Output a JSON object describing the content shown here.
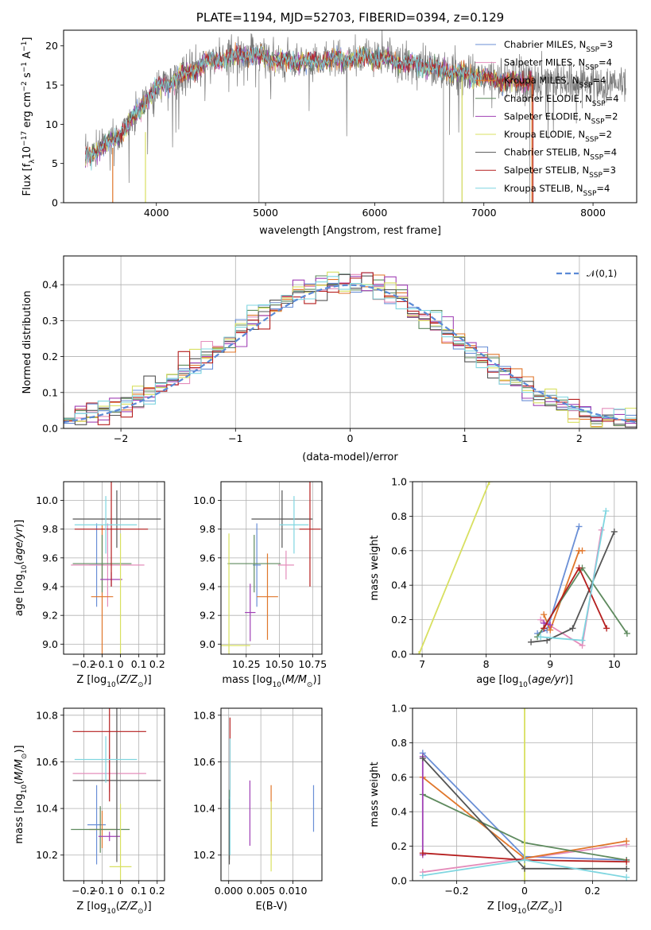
{
  "chart_data": [
    {
      "id": "spectrum",
      "type": "line",
      "title": "PLATE=1194, MJD=52703, FIBERID=0394, z=0.129",
      "xlabel": "wavelength [Angstrom, rest frame]",
      "ylabel": "Flux [f_λ10^-17 erg cm^-2 s^-1 A^-1]",
      "xlim": [
        3150,
        8400
      ],
      "ylim": [
        0,
        22
      ],
      "xticks": [
        4000,
        5000,
        6000,
        7000,
        8000
      ],
      "yticks": [
        0,
        5,
        10,
        15,
        20
      ],
      "legend_position": "upper-right",
      "series_names": [
        "Chabrier MILES, N_SSP=3",
        "Salpeter MILES, N_SSP=4",
        "Kroupa MILES, N_SSP=4",
        "Chabrier ELODIE, N_SSP=4",
        "Salpeter ELODIE, N_SSP=2",
        "Kroupa ELODIE, N_SSP=2",
        "Chabrier STELIB, N_SSP=4",
        "Salpeter STELIB, N_SSP=3",
        "Kroupa STELIB, N_SSP=4"
      ],
      "series_colors": [
        "#6a8fd6",
        "#e48dbb",
        "#e0762a",
        "#5e8a5e",
        "#a040b5",
        "#d8e060",
        "#555555",
        "#b51e1e",
        "#7fd6e0"
      ],
      "continuum": {
        "x": [
          3350,
          3500,
          3650,
          3800,
          3950,
          4050,
          4200,
          4350,
          4500,
          4650,
          4800,
          5000,
          5200,
          5400,
          5600,
          5800,
          6000,
          6200,
          6400,
          6600,
          6800,
          7000,
          7200,
          7400
        ],
        "y": [
          6,
          7,
          8.5,
          11,
          14,
          15,
          16,
          17,
          18,
          18.5,
          19,
          18.5,
          18,
          18,
          18.2,
          18.5,
          18.5,
          18,
          17.5,
          17,
          16.5,
          16,
          15.5,
          15.5
        ]
      },
      "observed_x_range": [
        3350,
        8300
      ]
    },
    {
      "id": "residuals",
      "type": "histogram",
      "xlabel": "(data-model)/error",
      "ylabel": "Normed distribution",
      "xlim": [
        -2.5,
        2.5
      ],
      "ylim": [
        0,
        0.48
      ],
      "xticks": [
        -2,
        -1,
        0,
        1,
        2
      ],
      "yticks": [
        0.0,
        0.1,
        0.2,
        0.3,
        0.4
      ],
      "bin_width": 0.1,
      "legend_position": "upper-right",
      "legend_label": "𝒩(0,1)",
      "reference_curve": {
        "mean": 0,
        "sigma": 1,
        "color": "#5a8ad6"
      }
    },
    {
      "id": "age-vs-z",
      "type": "errorbar",
      "xlabel": "Z [log10(Z/Z_sun)]",
      "ylabel": "age [log10(age/yr)]",
      "xlim": [
        -0.31,
        0.24
      ],
      "ylim": [
        8.93,
        10.13
      ],
      "xticks": [
        -0.2,
        -0.1,
        0.0,
        0.1,
        0.2
      ],
      "yticks": [
        9.0,
        9.2,
        9.4,
        9.6,
        9.8,
        10.0
      ],
      "points": [
        {
          "x": -0.13,
          "xerr": 0.04,
          "y": 9.55,
          "yerr": 0.29
        },
        {
          "x": -0.07,
          "xerr": 0.2,
          "y": 9.55,
          "yerr": 0.29
        },
        {
          "x": -0.1,
          "xerr": 0.06,
          "y": 9.33,
          "yerr": 0.5
        },
        {
          "x": -0.1,
          "xerr": 0.16,
          "y": 9.56,
          "yerr": 0.2
        },
        {
          "x": -0.05,
          "xerr": 0.06,
          "y": 9.45,
          "yerr": 0.05
        },
        {
          "x": 0.0,
          "xerr": 0.0,
          "y": 8.99,
          "yerr": 0.78
        },
        {
          "x": -0.02,
          "xerr": 0.24,
          "y": 9.87,
          "yerr": 0.2
        },
        {
          "x": -0.05,
          "xerr": 0.2,
          "y": 9.8,
          "yerr": 0.4
        },
        {
          "x": -0.08,
          "xerr": 0.17,
          "y": 9.83,
          "yerr": 0.2
        }
      ]
    },
    {
      "id": "age-vs-mass",
      "type": "errorbar",
      "xlabel": "mass [log10(M/M_sun)]",
      "ylabel": "",
      "xlim": [
        10.06,
        10.82
      ],
      "ylim": [
        8.93,
        10.13
      ],
      "xticks": [
        10.25,
        10.5,
        10.75
      ],
      "yticks": [
        9.0,
        9.2,
        9.4,
        9.6,
        9.8,
        10.0
      ],
      "points": [
        {
          "x": 10.33,
          "xerr": 0.03,
          "y": 9.55,
          "yerr": 0.29
        },
        {
          "x": 10.55,
          "xerr": 0.06,
          "y": 9.55,
          "yerr": 0.1
        },
        {
          "x": 10.41,
          "xerr": 0.08,
          "y": 9.33,
          "yerr": 0.3
        },
        {
          "x": 10.31,
          "xerr": 0.2,
          "y": 9.56,
          "yerr": 0.2
        },
        {
          "x": 10.28,
          "xerr": 0.04,
          "y": 9.22,
          "yerr": 0.2
        },
        {
          "x": 10.12,
          "xerr": 0.16,
          "y": 8.99,
          "yerr": 0.78
        },
        {
          "x": 10.52,
          "xerr": 0.23,
          "y": 9.87,
          "yerr": 0.2
        },
        {
          "x": 10.73,
          "xerr": 0.08,
          "y": 9.8,
          "yerr": 0.4
        },
        {
          "x": 10.61,
          "xerr": 0.11,
          "y": 9.83,
          "yerr": 0.2
        }
      ]
    },
    {
      "id": "weight-vs-age",
      "type": "line",
      "xlabel": "age [log10(age/yr)]",
      "ylabel": "mass weight",
      "xlim": [
        6.85,
        10.35
      ],
      "ylim": [
        0,
        1.0
      ],
      "xticks": [
        7,
        8,
        9,
        10
      ],
      "yticks": [
        0.0,
        0.2,
        0.4,
        0.6,
        0.8,
        1.0
      ],
      "series": [
        {
          "x": [
            8.8,
            8.95,
            9.45
          ],
          "y": [
            0.12,
            0.14,
            0.74
          ]
        },
        {
          "x": [
            8.85,
            9.5,
            9.8
          ],
          "y": [
            0.2,
            0.05,
            0.72
          ]
        },
        {
          "x": [
            8.9,
            9.0,
            9.45,
            9.5
          ],
          "y": [
            0.23,
            0.14,
            0.6,
            0.6
          ]
        },
        {
          "x": [
            8.8,
            9.5,
            10.2
          ],
          "y": [
            0.1,
            0.5,
            0.12
          ]
        },
        {
          "x": [
            8.9,
            9.0
          ],
          "y": [
            0.18,
            0.17
          ]
        },
        {
          "x": [
            6.95,
            8.05
          ],
          "y": [
            0.0,
            1.0
          ]
        },
        {
          "x": [
            8.7,
            8.95,
            9.35,
            10.0
          ],
          "y": [
            0.07,
            0.08,
            0.15,
            0.71
          ]
        },
        {
          "x": [
            8.9,
            9.45,
            9.88
          ],
          "y": [
            0.15,
            0.5,
            0.15
          ]
        },
        {
          "x": [
            8.85,
            9.5,
            9.87
          ],
          "y": [
            0.1,
            0.08,
            0.83
          ]
        }
      ]
    },
    {
      "id": "mass-vs-z",
      "type": "errorbar",
      "xlabel": "Z [log10(Z/Z_sun)]",
      "ylabel": "mass [log10(M/M_sun)]",
      "xlim": [
        -0.31,
        0.24
      ],
      "ylim": [
        10.09,
        10.83
      ],
      "xticks": [
        -0.2,
        -0.1,
        0.0,
        0.1,
        0.2
      ],
      "yticks": [
        10.2,
        10.4,
        10.6,
        10.8
      ],
      "points": [
        {
          "x": -0.13,
          "xerr": 0.05,
          "y": 10.33,
          "yerr": 0.17
        },
        {
          "x": -0.06,
          "xerr": 0.2,
          "y": 10.55,
          "yerr": 0.08
        },
        {
          "x": -0.1,
          "xerr": 0.07,
          "y": 10.31,
          "yerr": 0.08
        },
        {
          "x": -0.11,
          "xerr": 0.16,
          "y": 10.31,
          "yerr": 0.1
        },
        {
          "x": -0.06,
          "xerr": 0.06,
          "y": 10.28,
          "yerr": 0.02
        },
        {
          "x": 0.0,
          "xerr": 0.06,
          "y": 10.15,
          "yerr": 0.27
        },
        {
          "x": -0.02,
          "xerr": 0.24,
          "y": 10.52,
          "yerr": 0.35
        },
        {
          "x": -0.06,
          "xerr": 0.2,
          "y": 10.73,
          "yerr": 0.3
        },
        {
          "x": -0.08,
          "xerr": 0.17,
          "y": 10.61,
          "yerr": 0.1
        }
      ]
    },
    {
      "id": "mass-vs-ebv",
      "type": "errorbar",
      "xlabel": "E(B-V)",
      "ylabel": "",
      "xlim": [
        -0.0012,
        0.0145
      ],
      "ylim": [
        10.09,
        10.83
      ],
      "xticks": [
        0.0,
        0.005,
        0.01
      ],
      "xtick_labels": [
        "0.000",
        "0.005",
        "0.010"
      ],
      "yticks": [
        10.2,
        10.4,
        10.6,
        10.8
      ],
      "points": [
        {
          "x": 0.0132,
          "y": 10.4,
          "yerr": 0.1
        },
        {
          "x": 0.0002,
          "y": 10.55,
          "yerr": 0.15
        },
        {
          "x": 0.0066,
          "y": 10.35,
          "yerr": 0.15
        },
        {
          "x": 0.0001,
          "y": 10.33,
          "yerr": 0.15
        },
        {
          "x": 0.0033,
          "y": 10.38,
          "yerr": 0.14
        },
        {
          "x": 0.0066,
          "y": 10.28,
          "yerr": 0.15
        },
        {
          "x": 0.0001,
          "y": 10.3,
          "yerr": 0.14
        },
        {
          "x": 0.0002,
          "y": 10.62,
          "yerr": 0.17
        },
        {
          "x": 0.0002,
          "y": 10.45,
          "yerr": 0.25
        }
      ]
    },
    {
      "id": "weight-vs-z",
      "type": "line",
      "xlabel": "Z [log10(Z/Z_sun)]",
      "ylabel": "mass weight",
      "xlim": [
        -0.33,
        0.33
      ],
      "ylim": [
        0,
        1.0
      ],
      "xticks": [
        -0.2,
        0.0,
        0.2
      ],
      "yticks": [
        0.0,
        0.2,
        0.4,
        0.6,
        0.8,
        1.0
      ],
      "series": [
        {
          "x": [
            -0.3,
            0.0,
            0.3
          ],
          "y": [
            0.74,
            0.14,
            0.12
          ]
        },
        {
          "x": [
            -0.3,
            0.0,
            0.3
          ],
          "y": [
            0.05,
            0.13,
            0.21
          ]
        },
        {
          "x": [
            -0.3,
            0.0,
            0.3
          ],
          "y": [
            0.6,
            0.13,
            0.23
          ]
        },
        {
          "x": [
            -0.3,
            0.0,
            0.3
          ],
          "y": [
            0.5,
            0.22,
            0.12
          ]
        },
        {
          "x": [
            -0.3,
            -0.3
          ],
          "y": [
            0.72,
            0.15
          ]
        },
        {
          "x": [
            0.0,
            0.0
          ],
          "y": [
            0.0,
            1.0
          ]
        },
        {
          "x": [
            -0.3,
            0.0,
            0.3
          ],
          "y": [
            0.71,
            0.07,
            0.07
          ]
        },
        {
          "x": [
            -0.3,
            0.0,
            0.3
          ],
          "y": [
            0.16,
            0.12,
            0.11
          ]
        },
        {
          "x": [
            -0.3,
            0.0,
            0.3
          ],
          "y": [
            0.03,
            0.12,
            0.02
          ]
        }
      ]
    }
  ]
}
